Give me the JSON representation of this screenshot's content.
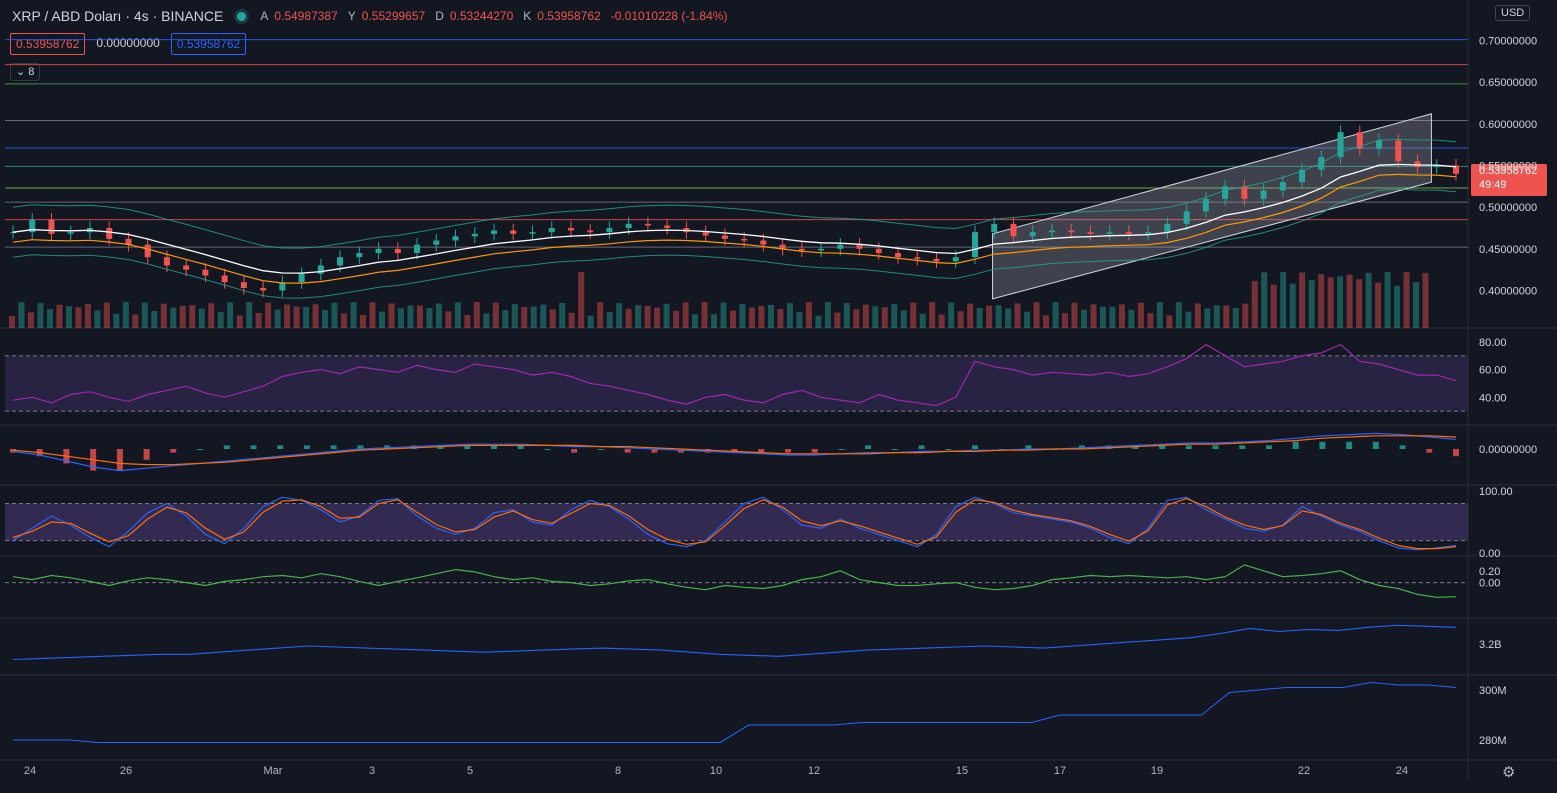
{
  "header": {
    "symbol": "XRP / ABD Doları · 4s · BINANCE",
    "open_label": "A",
    "open": "0.54987387",
    "high_label": "Y",
    "high": "0.55299657",
    "low_label": "D",
    "low": "0.53244270",
    "close_label": "K",
    "close": "0.53958762",
    "change": "-0.01010228 (-1.84%)"
  },
  "value_boxes": {
    "sell": "0.53958762",
    "spread": "0.00000000",
    "buy": "0.53958762"
  },
  "indicator_toggle": "8",
  "currency_button": "USD",
  "price_tag": {
    "price": "0.53958762",
    "countdown": "49:49"
  },
  "settings_icon": "gear-icon",
  "colors": {
    "up": "#26a69a",
    "down": "#ef5350",
    "background": "#131722",
    "grid": "#2a2e39",
    "rsi": "#9c27b0",
    "macd": "#2962ff",
    "signal": "#ff6d00",
    "ao": "#4caf50"
  },
  "chart_data": {
    "type": "line",
    "x_tick_labels": [
      "24",
      "26",
      "Mar",
      "3",
      "5",
      "8",
      "10",
      "12",
      "15",
      "17",
      "19",
      "22",
      "24"
    ],
    "main": {
      "series_kind": "candlestick",
      "price_labels": [
        "0.70000000",
        "0.65000000",
        "0.60000000",
        "0.55000000",
        "0.50000000",
        "0.45000000",
        "0.40000000"
      ],
      "ylim": [
        0.355,
        0.715
      ],
      "close": [
        0.47,
        0.485,
        0.468,
        0.47,
        0.475,
        0.462,
        0.455,
        0.44,
        0.43,
        0.425,
        0.418,
        0.41,
        0.403,
        0.4,
        0.41,
        0.42,
        0.43,
        0.44,
        0.445,
        0.45,
        0.445,
        0.455,
        0.46,
        0.465,
        0.468,
        0.472,
        0.468,
        0.47,
        0.475,
        0.472,
        0.47,
        0.475,
        0.48,
        0.478,
        0.475,
        0.47,
        0.466,
        0.462,
        0.46,
        0.455,
        0.45,
        0.448,
        0.45,
        0.455,
        0.45,
        0.445,
        0.44,
        0.438,
        0.435,
        0.44,
        0.47,
        0.48,
        0.465,
        0.47,
        0.472,
        0.47,
        0.468,
        0.47,
        0.468,
        0.47,
        0.48,
        0.495,
        0.51,
        0.525,
        0.51,
        0.52,
        0.53,
        0.545,
        0.56,
        0.59,
        0.57,
        0.58,
        0.555,
        0.548,
        0.55,
        0.54
      ],
      "volume_scale_label": "",
      "horizontal_levels": [
        0.701,
        0.671,
        0.648,
        0.604,
        0.571,
        0.549,
        0.523,
        0.506,
        0.485,
        0.452
      ]
    },
    "rsi": {
      "name": "",
      "levels": [
        "80.00",
        "60.00",
        "40.00"
      ],
      "ylim": [
        20,
        90
      ],
      "band": [
        30,
        70
      ],
      "values": [
        38,
        40,
        36,
        42,
        44,
        40,
        37,
        42,
        45,
        48,
        43,
        40,
        44,
        48,
        55,
        58,
        60,
        57,
        62,
        60,
        58,
        63,
        60,
        58,
        64,
        62,
        60,
        56,
        58,
        55,
        50,
        48,
        45,
        42,
        38,
        35,
        40,
        42,
        38,
        36,
        42,
        45,
        40,
        38,
        36,
        42,
        38,
        36,
        34,
        40,
        66,
        62,
        60,
        56,
        58,
        57,
        56,
        58,
        55,
        57,
        62,
        68,
        78,
        70,
        62,
        64,
        66,
        70,
        72,
        78,
        66,
        64,
        60,
        56,
        56,
        52
      ]
    },
    "macd": {
      "levels": [
        "0.00000000"
      ],
      "ylim": [
        -0.03,
        0.02
      ],
      "macd": [
        -0.002,
        -0.005,
        -0.01,
        -0.015,
        -0.018,
        -0.016,
        -0.014,
        -0.012,
        -0.01,
        -0.008,
        -0.006,
        -0.004,
        -0.002,
        0,
        0.001,
        0.002,
        0.003,
        0.004,
        0.004,
        0.004,
        0.003,
        0.002,
        0.002,
        0.001,
        0,
        -0.001,
        -0.002,
        -0.003,
        -0.004,
        -0.005,
        -0.005,
        -0.004,
        -0.003,
        -0.003,
        -0.002,
        -0.002,
        -0.001,
        -0.001,
        0,
        0,
        0.001,
        0.002,
        0.003,
        0.004,
        0.005,
        0.005,
        0.006,
        0.007,
        0.009,
        0.011,
        0.012,
        0.013,
        0.012,
        0.01,
        0.008
      ],
      "signal": [
        -0.001,
        -0.003,
        -0.006,
        -0.009,
        -0.012,
        -0.013,
        -0.013,
        -0.012,
        -0.011,
        -0.009,
        -0.007,
        -0.005,
        -0.003,
        -0.001,
        0,
        0.001,
        0.002,
        0.003,
        0.003,
        0.003,
        0.003,
        0.003,
        0.002,
        0.002,
        0.001,
        0,
        -0.001,
        -0.002,
        -0.003,
        -0.004,
        -0.004,
        -0.004,
        -0.004,
        -0.003,
        -0.003,
        -0.002,
        -0.002,
        -0.001,
        -0.001,
        0,
        0,
        0.001,
        0.002,
        0.003,
        0.004,
        0.004,
        0.005,
        0.006,
        0.007,
        0.009,
        0.01,
        0.011,
        0.011,
        0.011,
        0.01
      ]
    },
    "stoch": {
      "levels": [
        "100.00",
        "0.00"
      ],
      "ylim": [
        -5,
        110
      ],
      "band": [
        20,
        80
      ],
      "k": [
        20,
        40,
        60,
        45,
        25,
        10,
        35,
        65,
        80,
        60,
        30,
        15,
        40,
        75,
        90,
        85,
        70,
        50,
        60,
        85,
        88,
        60,
        40,
        30,
        40,
        65,
        70,
        50,
        45,
        70,
        85,
        75,
        55,
        30,
        15,
        10,
        20,
        50,
        80,
        90,
        70,
        45,
        40,
        55,
        40,
        30,
        20,
        10,
        30,
        75,
        90,
        80,
        65,
        60,
        55,
        50,
        40,
        25,
        15,
        40,
        85,
        90,
        70,
        55,
        40,
        35,
        45,
        75,
        60,
        45,
        35,
        20,
        8,
        5,
        8,
        12
      ],
      "d": [
        25,
        35,
        50,
        48,
        32,
        18,
        28,
        55,
        74,
        65,
        40,
        22,
        34,
        66,
        84,
        86,
        75,
        56,
        58,
        80,
        86,
        66,
        46,
        34,
        38,
        58,
        68,
        54,
        48,
        64,
        80,
        77,
        60,
        38,
        22,
        14,
        18,
        44,
        72,
        86,
        74,
        52,
        44,
        52,
        44,
        34,
        24,
        14,
        26,
        66,
        86,
        82,
        69,
        62,
        57,
        52,
        43,
        30,
        19,
        36,
        78,
        88,
        75,
        58,
        45,
        38,
        44,
        68,
        62,
        48,
        38,
        24,
        12,
        7,
        7,
        10
      ]
    },
    "ao": {
      "levels": [
        "0.20",
        "0.00"
      ],
      "ylim": [
        -0.6,
        0.45
      ],
      "values": [
        0.1,
        0.05,
        0.12,
        0.08,
        0.02,
        -0.05,
        0.03,
        0.08,
        0.05,
        0,
        -0.05,
        0.02,
        0.05,
        0.1,
        0.12,
        0.08,
        0.15,
        0.1,
        0.02,
        -0.05,
        0.02,
        0.08,
        0.15,
        0.22,
        0.18,
        0.1,
        0.05,
        0.08,
        0.02,
        0,
        -0.05,
        -0.02,
        0.03,
        0.05,
        -0.02,
        -0.08,
        -0.12,
        -0.05,
        -0.08,
        -0.1,
        -0.05,
        0.05,
        0.1,
        0.2,
        0.05,
        0,
        -0.05,
        -0.05,
        -0.02,
        0,
        -0.08,
        -0.12,
        -0.1,
        -0.05,
        0.05,
        0.08,
        0.12,
        0.1,
        0.12,
        0.1,
        0.08,
        0.1,
        0.05,
        0.1,
        0.3,
        0.2,
        0.1,
        0.12,
        0.15,
        0.2,
        0.05,
        -0.05,
        -0.1,
        -0.2,
        -0.25,
        -0.24
      ]
    },
    "obv": {
      "levels": [
        "3.2B"
      ],
      "ylim": [
        2.9,
        3.45
      ],
      "values": [
        3.05,
        3.06,
        3.07,
        3.08,
        3.09,
        3.1,
        3.1,
        3.12,
        3.14,
        3.16,
        3.18,
        3.17,
        3.16,
        3.15,
        3.14,
        3.13,
        3.12,
        3.13,
        3.14,
        3.15,
        3.16,
        3.15,
        3.14,
        3.12,
        3.1,
        3.09,
        3.08,
        3.1,
        3.12,
        3.14,
        3.15,
        3.16,
        3.17,
        3.18,
        3.17,
        3.16,
        3.18,
        3.2,
        3.22,
        3.24,
        3.26,
        3.3,
        3.35,
        3.32,
        3.34,
        3.33,
        3.36,
        3.38,
        3.37,
        3.36
      ]
    },
    "vol_ma": {
      "levels": [
        "300M",
        "280M"
      ],
      "ylim": [
        272,
        306
      ],
      "values": [
        280,
        280,
        280,
        279,
        279,
        279,
        279,
        279,
        279,
        279,
        279,
        279,
        279,
        279,
        279,
        279,
        279,
        279,
        279,
        279,
        279,
        279,
        279,
        279,
        279,
        279,
        286,
        286,
        286,
        286,
        287,
        287,
        287,
        287,
        287,
        287,
        287,
        290,
        290,
        290,
        290,
        290,
        290,
        299,
        300,
        301,
        301,
        301,
        303,
        302,
        302,
        301
      ]
    }
  }
}
